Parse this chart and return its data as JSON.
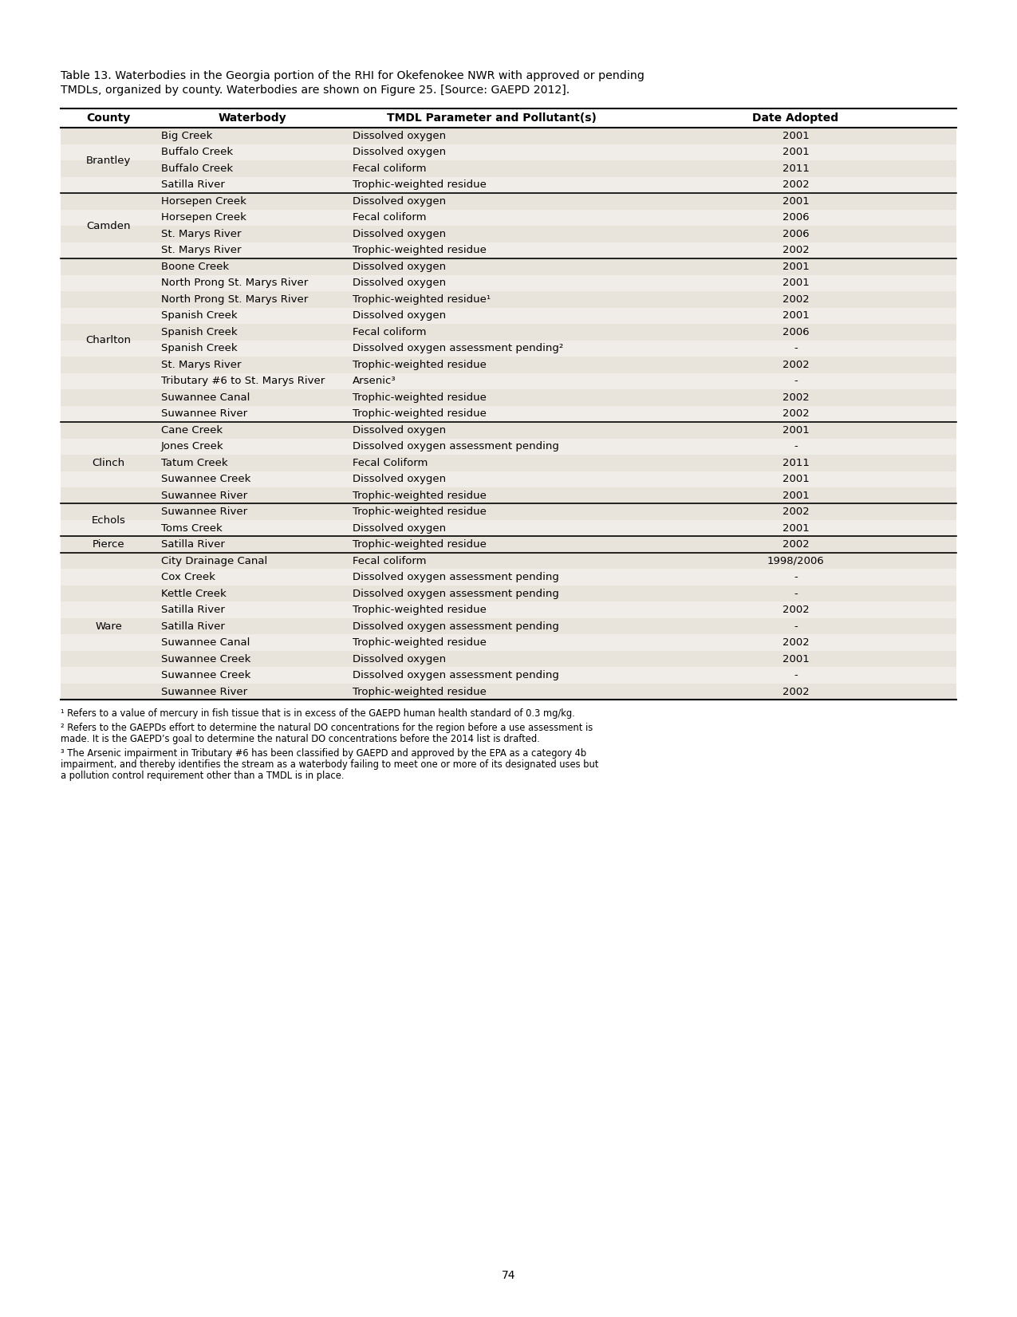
{
  "title_line1": "Table 13. Waterbodies in the Georgia portion of the RHI for Okefenokee NWR with approved or pending",
  "title_line2": "TMDLs, organized by county. Waterbodies are shown on Figure 25. [Source: GAEPD 2012].",
  "headers": [
    "County",
    "Waterbody",
    "TMDL Parameter and Pollutant(s)",
    "Date Adopted"
  ],
  "rows": [
    [
      "Brantley",
      "Big Creek",
      "Dissolved oxygen",
      "2001"
    ],
    [
      "",
      "Buffalo Creek",
      "Dissolved oxygen",
      "2001"
    ],
    [
      "",
      "Buffalo Creek",
      "Fecal coliform",
      "2011"
    ],
    [
      "",
      "Satilla River",
      "Trophic-weighted residue",
      "2002"
    ],
    [
      "Camden",
      "Horsepen Creek",
      "Dissolved oxygen",
      "2001"
    ],
    [
      "",
      "Horsepen Creek",
      "Fecal coliform",
      "2006"
    ],
    [
      "",
      "St. Marys River",
      "Dissolved oxygen",
      "2006"
    ],
    [
      "",
      "St. Marys River",
      "Trophic-weighted residue",
      "2002"
    ],
    [
      "Charlton",
      "Boone Creek",
      "Dissolved oxygen",
      "2001"
    ],
    [
      "",
      "North Prong St. Marys River",
      "Dissolved oxygen",
      "2001"
    ],
    [
      "",
      "North Prong St. Marys River",
      "Trophic-weighted residue¹",
      "2002"
    ],
    [
      "",
      "Spanish Creek",
      "Dissolved oxygen",
      "2001"
    ],
    [
      "",
      "Spanish Creek",
      "Fecal coliform",
      "2006"
    ],
    [
      "",
      "Spanish Creek",
      "Dissolved oxygen assessment pending²",
      "-"
    ],
    [
      "",
      "St. Marys River",
      "Trophic-weighted residue",
      "2002"
    ],
    [
      "",
      "Tributary #6 to St. Marys River",
      "Arsenic³",
      "-"
    ],
    [
      "",
      "Suwannee Canal",
      "Trophic-weighted residue",
      "2002"
    ],
    [
      "",
      "Suwannee River",
      "Trophic-weighted residue",
      "2002"
    ],
    [
      "Clinch",
      "Cane Creek",
      "Dissolved oxygen",
      "2001"
    ],
    [
      "",
      "Jones Creek",
      "Dissolved oxygen assessment pending",
      "-"
    ],
    [
      "",
      "Tatum Creek",
      "Fecal Coliform",
      "2011"
    ],
    [
      "",
      "Suwannee Creek",
      "Dissolved oxygen",
      "2001"
    ],
    [
      "",
      "Suwannee River",
      "Trophic-weighted residue",
      "2001"
    ],
    [
      "Echols",
      "Suwannee River",
      "Trophic-weighted residue",
      "2002"
    ],
    [
      "",
      "Toms Creek",
      "Dissolved oxygen",
      "2001"
    ],
    [
      "Pierce",
      "Satilla River",
      "Trophic-weighted residue",
      "2002"
    ],
    [
      "Ware",
      "City Drainage Canal",
      "Fecal coliform",
      "1998/2006"
    ],
    [
      "",
      "Cox Creek",
      "Dissolved oxygen assessment pending",
      "-"
    ],
    [
      "",
      "Kettle Creek",
      "Dissolved oxygen assessment pending",
      "-"
    ],
    [
      "",
      "Satilla River",
      "Trophic-weighted residue",
      "2002"
    ],
    [
      "",
      "Satilla River",
      "Dissolved oxygen assessment pending",
      "-"
    ],
    [
      "",
      "Suwannee Canal",
      "Trophic-weighted residue",
      "2002"
    ],
    [
      "",
      "Suwannee Creek",
      "Dissolved oxygen",
      "2001"
    ],
    [
      "",
      "Suwannee Creek",
      "Dissolved oxygen assessment pending",
      "-"
    ],
    [
      "",
      "Suwannee River",
      "Trophic-weighted residue",
      "2002"
    ]
  ],
  "county_groups": [
    [
      "Brantley",
      0,
      3
    ],
    [
      "Camden",
      4,
      7
    ],
    [
      "Charlton",
      8,
      17
    ],
    [
      "Clinch",
      18,
      22
    ],
    [
      "Echols",
      23,
      24
    ],
    [
      "Pierce",
      25,
      25
    ],
    [
      "Ware",
      26,
      34
    ]
  ],
  "footnotes": [
    "¹ Refers to a value of mercury in fish tissue that is in excess of the GAEPD human health standard of 0.3 mg/kg.",
    "² Refers to the GAEPDs effort to determine the natural DO concentrations for the region before a use assessment is made. It is the GAEPD’s goal to determine the natural DO concentrations before the 2014 list is drafted.",
    "³  The Arsenic impairment in Tributary #6 has been classified by GAEPD and approved by the EPA as a category 4b impairment, and thereby identifies the stream as a waterbody failing to meet one or more of its designated uses but a pollution control requirement other than a TMDL is in place."
  ],
  "page_number": "74",
  "bg_color": "#ffffff",
  "row_colors": [
    "#e8e4dc",
    "#f0ede8"
  ],
  "header_bg": "#ffffff",
  "border_color": "#000000"
}
